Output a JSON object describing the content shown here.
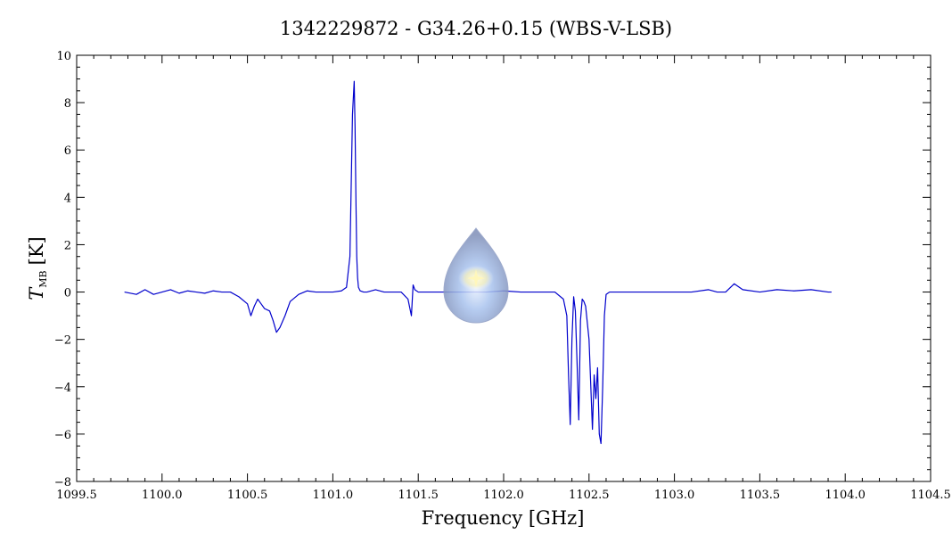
{
  "chart_data": {
    "type": "line",
    "title": "1342229872 - G34.26+0.15 (WBS-V-LSB)",
    "xlabel": "Frequency [GHz]",
    "ylabel_symbol": "T",
    "ylabel_subscript": "MB",
    "ylabel_unit": "[K]",
    "xlim": [
      1099.5,
      1104.5
    ],
    "ylim": [
      -8,
      10
    ],
    "x_ticks": [
      1099.5,
      1100.0,
      1100.5,
      1101.0,
      1101.5,
      1102.0,
      1102.5,
      1103.0,
      1103.5,
      1104.0,
      1104.5
    ],
    "x_tick_labels": [
      "1099.5",
      "1100.0",
      "1100.5",
      "1101.0",
      "1101.5",
      "1102.0",
      "1102.5",
      "1103.0",
      "1103.5",
      "1104.0",
      "1104.5"
    ],
    "y_ticks": [
      -8,
      -6,
      -4,
      -2,
      0,
      2,
      4,
      6,
      8,
      10
    ],
    "y_tick_labels": [
      "−8",
      "−6",
      "−4",
      "−2",
      "0",
      "2",
      "4",
      "6",
      "8",
      "10"
    ],
    "grid": false,
    "series": [
      {
        "color": "#0000cc",
        "x": [
          1099.78,
          1099.85,
          1099.9,
          1099.95,
          1100.0,
          1100.05,
          1100.1,
          1100.15,
          1100.2,
          1100.25,
          1100.3,
          1100.35,
          1100.4,
          1100.45,
          1100.5,
          1100.52,
          1100.54,
          1100.56,
          1100.58,
          1100.6,
          1100.63,
          1100.65,
          1100.67,
          1100.69,
          1100.72,
          1100.75,
          1100.8,
          1100.85,
          1100.9,
          1100.95,
          1101.0,
          1101.05,
          1101.08,
          1101.1,
          1101.115,
          1101.125,
          1101.13,
          1101.135,
          1101.14,
          1101.145,
          1101.15,
          1101.16,
          1101.18,
          1101.2,
          1101.25,
          1101.3,
          1101.35,
          1101.4,
          1101.44,
          1101.46,
          1101.47,
          1101.48,
          1101.5,
          1101.6,
          1101.7,
          1101.8,
          1101.9,
          1102.0,
          1102.1,
          1102.2,
          1102.3,
          1102.35,
          1102.37,
          1102.38,
          1102.39,
          1102.4,
          1102.41,
          1102.42,
          1102.43,
          1102.44,
          1102.45,
          1102.46,
          1102.47,
          1102.48,
          1102.5,
          1102.52,
          1102.53,
          1102.54,
          1102.55,
          1102.56,
          1102.57,
          1102.58,
          1102.59,
          1102.6,
          1102.62,
          1102.7,
          1102.8,
          1102.9,
          1103.0,
          1103.1,
          1103.2,
          1103.25,
          1103.3,
          1103.35,
          1103.4,
          1103.5,
          1103.6,
          1103.7,
          1103.8,
          1103.9,
          1103.92
        ],
        "y": [
          0.0,
          -0.1,
          0.1,
          -0.1,
          0.0,
          0.1,
          -0.05,
          0.05,
          0.0,
          -0.05,
          0.05,
          0.0,
          0.0,
          -0.2,
          -0.5,
          -1.0,
          -0.6,
          -0.3,
          -0.5,
          -0.7,
          -0.8,
          -1.2,
          -1.7,
          -1.5,
          -1.0,
          -0.4,
          -0.1,
          0.05,
          0.0,
          0.0,
          0.0,
          0.05,
          0.2,
          1.5,
          7.5,
          8.9,
          7.0,
          4.0,
          1.5,
          0.6,
          0.2,
          0.05,
          0.0,
          0.0,
          0.1,
          0.0,
          0.0,
          0.0,
          -0.3,
          -1.0,
          0.3,
          0.1,
          0.0,
          0.0,
          0.0,
          0.0,
          0.0,
          0.05,
          0.0,
          0.0,
          0.0,
          -0.3,
          -1.0,
          -3.5,
          -5.6,
          -2.0,
          -0.2,
          -0.8,
          -3.0,
          -5.4,
          -1.2,
          -0.3,
          -0.4,
          -0.6,
          -2.0,
          -5.8,
          -3.5,
          -4.5,
          -3.2,
          -6.0,
          -6.4,
          -4.0,
          -1.0,
          -0.1,
          0.0,
          0.0,
          0.0,
          0.0,
          0.0,
          0.0,
          0.1,
          0.0,
          0.0,
          0.35,
          0.1,
          0.0,
          0.1,
          0.05,
          0.1,
          0.0,
          0.0
        ]
      }
    ]
  }
}
